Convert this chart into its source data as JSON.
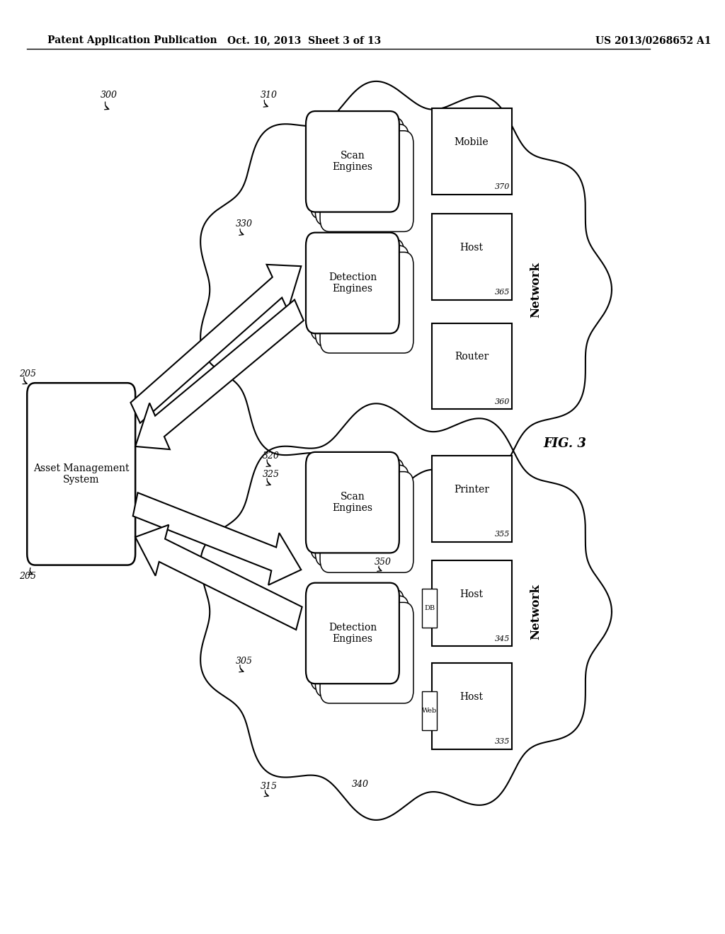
{
  "bg_color": "#ffffff",
  "header_left": "Patent Application Publication",
  "header_mid": "Oct. 10, 2013  Sheet 3 of 13",
  "header_right": "US 2013/0268652 A1",
  "fig_label": "FIG. 3"
}
